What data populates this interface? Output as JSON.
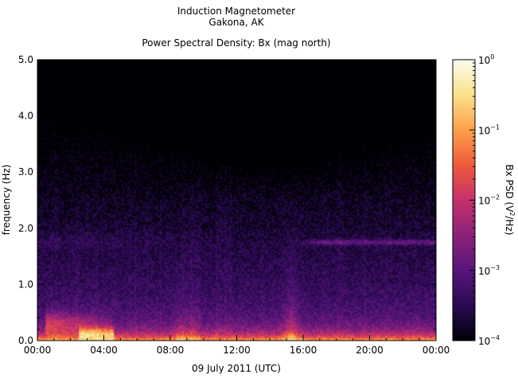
{
  "chart_data": {
    "type": "heatmap",
    "title": [
      "Induction Magnetometer",
      "Gakona, AK"
    ],
    "subtitle": "Power Spectral Density: Bx (mag north)",
    "xlabel": "09 July 2011 (UTC)",
    "ylabel": "frequency (Hz)",
    "x_tick_labels": [
      "00:00",
      "04:00",
      "08:00",
      "12:00",
      "16:00",
      "20:00",
      "00:00"
    ],
    "x_ticks_hours": [
      0,
      4,
      8,
      12,
      16,
      20,
      24
    ],
    "xlim_hours": [
      0,
      24
    ],
    "y_ticks": [
      0.0,
      1.0,
      2.0,
      3.0,
      4.0,
      5.0
    ],
    "y_tick_labels": [
      "0.0",
      "1.0",
      "2.0",
      "3.0",
      "4.0",
      "5.0"
    ],
    "ylim": [
      0,
      5
    ],
    "colorbar": {
      "label_base": "Bx PSD (V",
      "label_sup": "2",
      "label_end": "/Hz)",
      "scale": "log",
      "range": [
        0.0001,
        1
      ],
      "tick_labels": [
        {
          "base": "10",
          "exp": "0"
        },
        {
          "base": "10",
          "exp": "-1"
        },
        {
          "base": "10",
          "exp": "-2"
        },
        {
          "base": "10",
          "exp": "-3"
        },
        {
          "base": "10",
          "exp": "-4"
        }
      ],
      "tick_values": [
        1,
        0.1,
        0.01,
        0.001,
        0.0001
      ],
      "colormap": [
        "#000004",
        "#2a0a52",
        "#58157b",
        "#8b227a",
        "#c5306c",
        "#ee5a3a",
        "#fca04a",
        "#f9e08a",
        "#fcfdf0"
      ]
    },
    "features": [
      {
        "name": "Pc1 band",
        "hours": [
          15.5,
          24
        ],
        "freq_hz": 1.75
      },
      {
        "name": "low-frequency bursts",
        "hours": [
          0.5,
          4.5
        ],
        "freq_hz": [
          0.1,
          0.5
        ]
      }
    ]
  }
}
